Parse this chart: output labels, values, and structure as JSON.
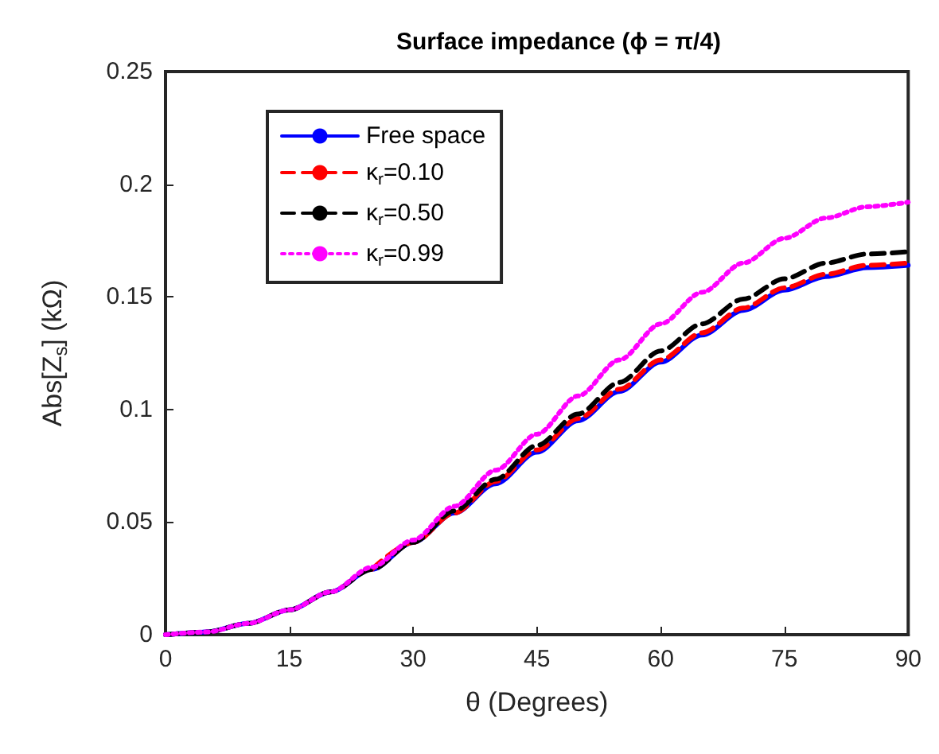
{
  "chart_data": {
    "type": "line",
    "title": "Surface impedance (ϕ = π/4)",
    "xlabel": "θ (Degrees)",
    "ylabel": "Abs[Z$_{s}$] (kΩ)",
    "x": [
      0,
      5,
      10,
      15,
      20,
      25,
      30,
      35,
      40,
      45,
      50,
      55,
      60,
      65,
      70,
      75,
      80,
      85,
      90
    ],
    "xlim": [
      0,
      90
    ],
    "xticks": [
      0,
      15,
      30,
      45,
      60,
      75,
      90
    ],
    "ylim": [
      0,
      0.25
    ],
    "yticks": [
      0,
      0.05,
      0.1,
      0.15,
      0.2,
      0.25
    ],
    "grid": false,
    "legend": "top left",
    "marker": "none",
    "series": [
      {
        "name": "Free space",
        "color": "#0000ff",
        "line_style": "solid",
        "values": [
          0,
          0.0012,
          0.005,
          0.011,
          0.019,
          0.029,
          0.041,
          0.054,
          0.067,
          0.081,
          0.095,
          0.108,
          0.121,
          0.133,
          0.144,
          0.153,
          0.159,
          0.163,
          0.164
        ]
      },
      {
        "name": "κ$_{r}$=0.10",
        "color": "#ff0000",
        "line_style": "dashed",
        "values": [
          null,
          null,
          null,
          null,
          null,
          0.029,
          0.041,
          0.054,
          0.068,
          0.082,
          0.096,
          0.109,
          0.122,
          0.134,
          0.145,
          0.154,
          0.16,
          0.164,
          0.165
        ]
      },
      {
        "name": "κ$_{r}$=0.50",
        "color": "#000000",
        "line_style": "dashed",
        "values": [
          0,
          0.0012,
          0.005,
          0.011,
          0.019,
          0.029,
          0.041,
          0.055,
          0.069,
          0.084,
          0.098,
          0.112,
          0.126,
          0.138,
          0.149,
          0.158,
          0.165,
          0.169,
          0.17
        ]
      },
      {
        "name": "κ$_{r}$=0.99",
        "color": "#ff00ff",
        "line_style": "dotted",
        "values": [
          0,
          0.0012,
          0.005,
          0.011,
          0.019,
          0.03,
          0.042,
          0.057,
          0.073,
          0.089,
          0.106,
          0.122,
          0.138,
          0.152,
          0.165,
          0.176,
          0.185,
          0.19,
          0.192
        ]
      }
    ]
  }
}
